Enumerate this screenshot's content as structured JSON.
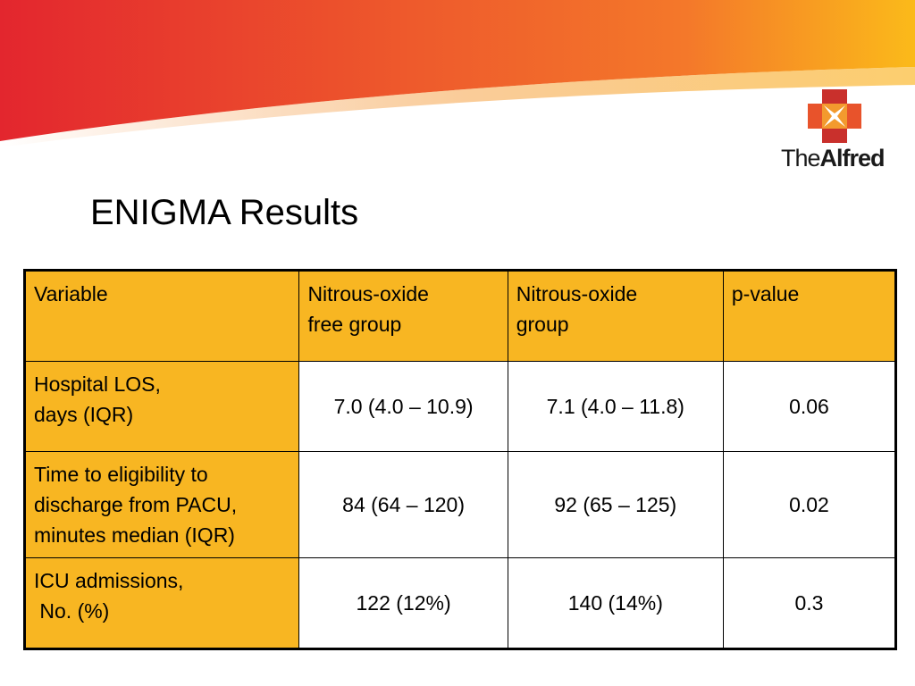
{
  "slide": {
    "title": "ENIGMA Results",
    "logo": {
      "prefix": "The",
      "name": "Alfred"
    }
  },
  "colors": {
    "header_fill": "#F8B622",
    "banner_red": "#E3262E",
    "banner_orange": "#F4782A",
    "banner_yellow": "#FBBA1A"
  },
  "table": {
    "headers": [
      [
        "Variable"
      ],
      [
        "Nitrous-oxide",
        "free group"
      ],
      [
        "Nitrous-oxide",
        "group"
      ],
      [
        "p-value"
      ]
    ],
    "rows": [
      {
        "variable": [
          "Hospital LOS,",
          "days (IQR)"
        ],
        "free": "7.0 (4.0 – 10.9)",
        "n2o": "7.1 (4.0 – 11.8)",
        "p": "0.06"
      },
      {
        "variable": [
          "Time to eligibility to",
          "discharge from PACU,",
          "minutes median (IQR)"
        ],
        "free": "84 (64 – 120)",
        "n2o": "92 (65 – 125)",
        "p": "0.02"
      },
      {
        "variable": [
          "ICU admissions,",
          " No. (%)"
        ],
        "free": "122 (12%)",
        "n2o": "140 (14%)",
        "p": "0.3"
      }
    ]
  }
}
